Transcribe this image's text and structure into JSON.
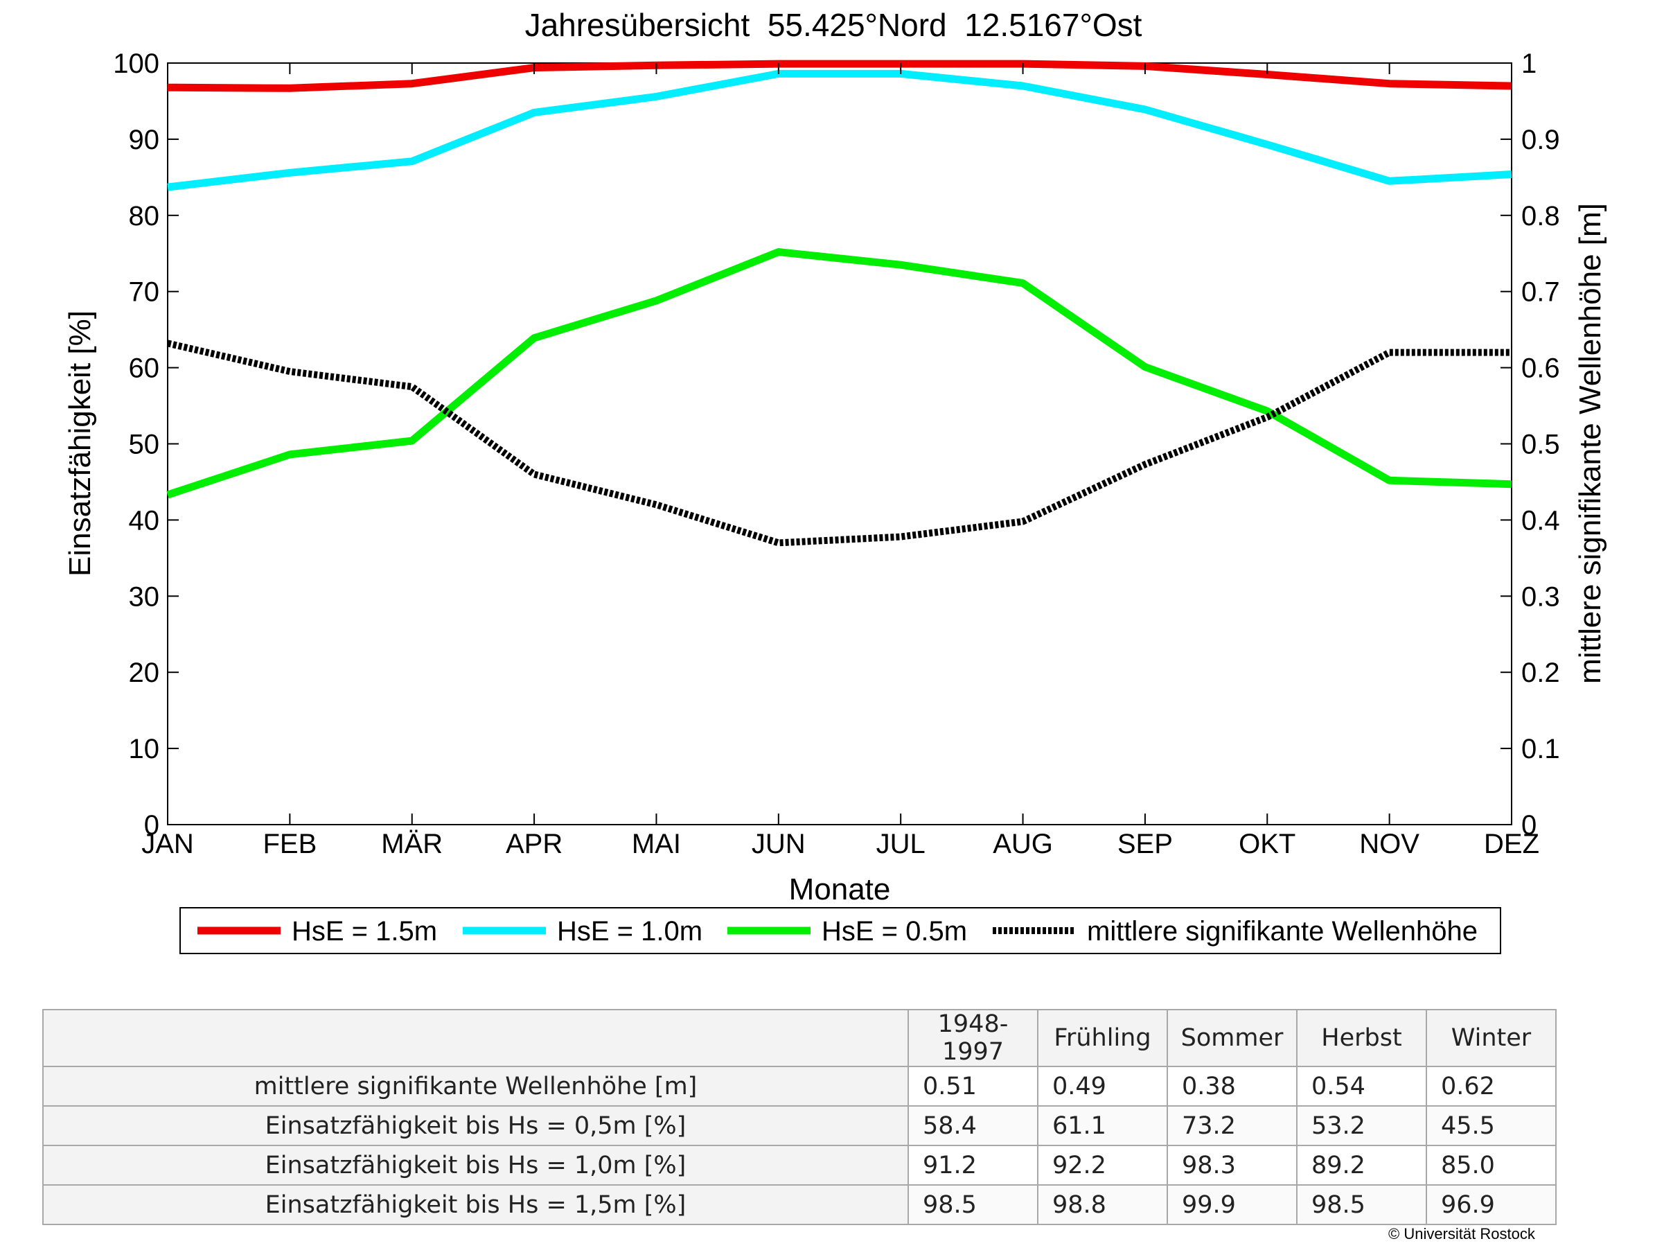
{
  "chart_data": {
    "type": "line",
    "title": "Jahresübersicht  55.425°Nord  12.5167°Ost",
    "xlabel": "Monate",
    "ylabel": "Einsatzfähigkeit [%]",
    "ylabel_right": "mittlere signifikante Wellenhöhe [m]",
    "categories": [
      "JAN",
      "FEB",
      "MÄR",
      "APR",
      "MAI",
      "JUN",
      "JUL",
      "AUG",
      "SEP",
      "OKT",
      "NOV",
      "DEZ"
    ],
    "ylim": [
      0,
      100
    ],
    "ylim_right": [
      0,
      1
    ],
    "yticks": [
      "0",
      "10",
      "20",
      "30",
      "40",
      "50",
      "60",
      "70",
      "80",
      "90",
      "100"
    ],
    "yticks_right": [
      "0",
      "0.1",
      "0.2",
      "0.3",
      "0.4",
      "0.5",
      "0.6",
      "0.7",
      "0.8",
      "0.9",
      "1"
    ],
    "grid": false,
    "legend_placement": "bottom",
    "series": [
      {
        "name": "HsE = 1.5m",
        "axis": "left",
        "color": "#ee0000",
        "style": "solid",
        "values": [
          96.8,
          96.7,
          97.3,
          99.4,
          99.7,
          99.9,
          99.9,
          99.9,
          99.6,
          98.5,
          97.3,
          97.0
        ]
      },
      {
        "name": "HsE = 1.0m",
        "axis": "left",
        "color": "#00eeff",
        "style": "solid",
        "values": [
          83.7,
          85.6,
          87.1,
          93.5,
          95.6,
          98.6,
          98.6,
          97.0,
          93.9,
          89.3,
          84.5,
          85.4
        ]
      },
      {
        "name": "HsE = 0.5m",
        "axis": "left",
        "color": "#00ee00",
        "style": "solid",
        "values": [
          43.3,
          48.6,
          50.4,
          63.9,
          68.8,
          75.2,
          73.5,
          71.1,
          60.1,
          54.3,
          45.2,
          44.7
        ]
      },
      {
        "name": "mittlere signifikante Wellenhöhe",
        "axis": "right",
        "color": "#000000",
        "style": "dotted",
        "values": [
          0.632,
          0.595,
          0.575,
          0.46,
          0.42,
          0.37,
          0.378,
          0.398,
          0.473,
          0.535,
          0.62,
          0.62
        ]
      }
    ]
  },
  "table": {
    "headers": [
      "1948-1997",
      "Frühling",
      "Sommer",
      "Herbst",
      "Winter"
    ],
    "rows": [
      {
        "label": "mittlere signifikante Wellenhöhe [m]",
        "values": [
          "0.51",
          "0.49",
          "0.38",
          "0.54",
          "0.62"
        ]
      },
      {
        "label": "Einsatzfähigkeit bis Hs = 0,5m [%]",
        "values": [
          "58.4",
          "61.1",
          "73.2",
          "53.2",
          "45.5"
        ]
      },
      {
        "label": "Einsatzfähigkeit bis Hs = 1,0m [%]",
        "values": [
          "91.2",
          "92.2",
          "98.3",
          "89.2",
          "85.0"
        ]
      },
      {
        "label": "Einsatzfähigkeit bis Hs = 1,5m [%]",
        "values": [
          "98.5",
          "98.8",
          "99.9",
          "98.5",
          "96.9"
        ]
      }
    ]
  },
  "copyright": "© Universität Rostock"
}
